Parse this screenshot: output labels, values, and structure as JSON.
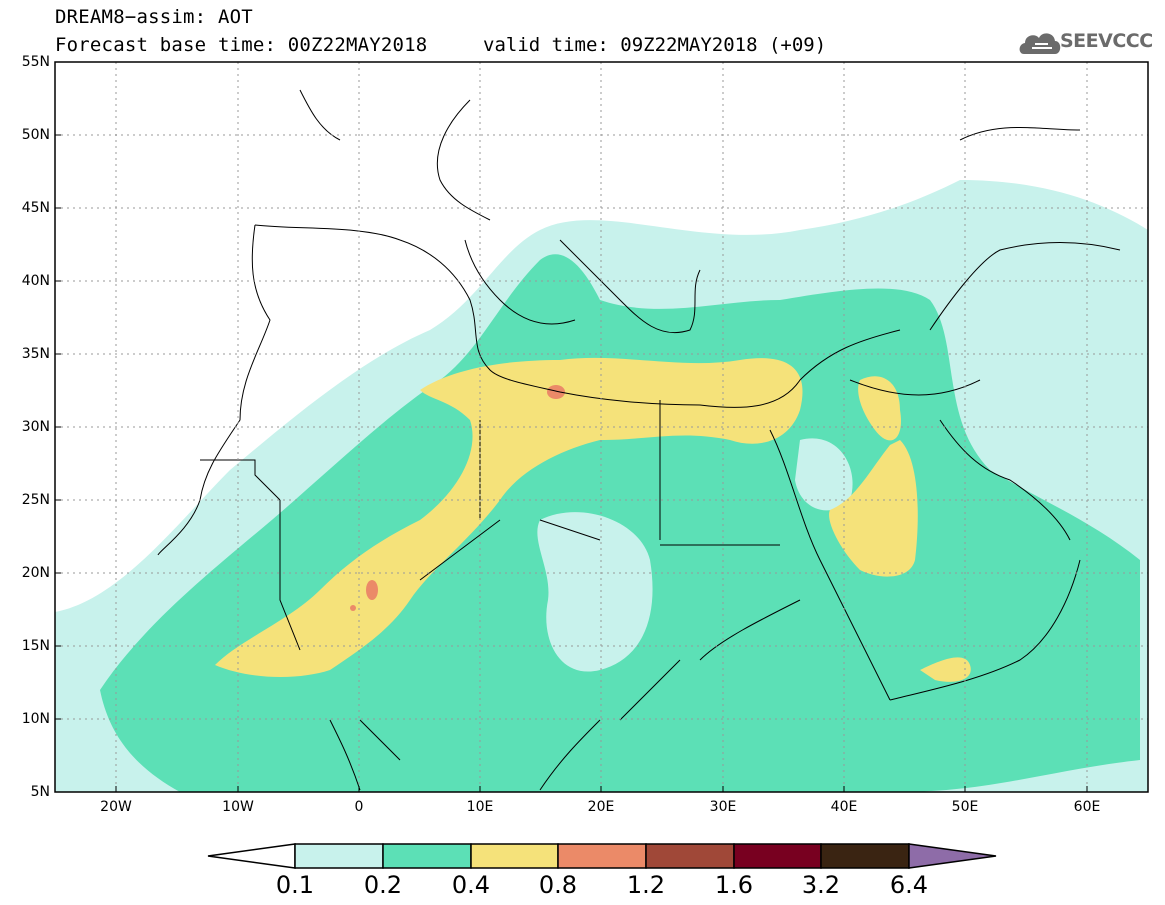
{
  "header": {
    "title": "DREAM8−assim: AOT",
    "base_time": "Forecast base time: 00Z22MAY2018",
    "valid_time": "valid time: 09Z22MAY2018 (+09)"
  },
  "logo": {
    "text": "SEEVCCC",
    "icon": "cloud-icon"
  },
  "map": {
    "lat_labels": [
      "55N",
      "50N",
      "45N",
      "40N",
      "35N",
      "30N",
      "25N",
      "20N",
      "15N",
      "10N",
      "5N"
    ],
    "lon_labels": [
      "20W",
      "10W",
      "0",
      "10E",
      "20E",
      "30E",
      "40E",
      "50E",
      "60E"
    ],
    "lon_range": [
      -25,
      65
    ],
    "lat_range": [
      5,
      55
    ]
  },
  "colorbar": {
    "colors": [
      "#c8f2ec",
      "#5ce0b6",
      "#f5e27a",
      "#eb8a68",
      "#a04838",
      "#780020",
      "#3a2412",
      "#8e6ca8"
    ],
    "labels": [
      "0.1",
      "0.2",
      "0.4",
      "0.8",
      "1.2",
      "1.6",
      "3.2",
      "6.4"
    ]
  }
}
